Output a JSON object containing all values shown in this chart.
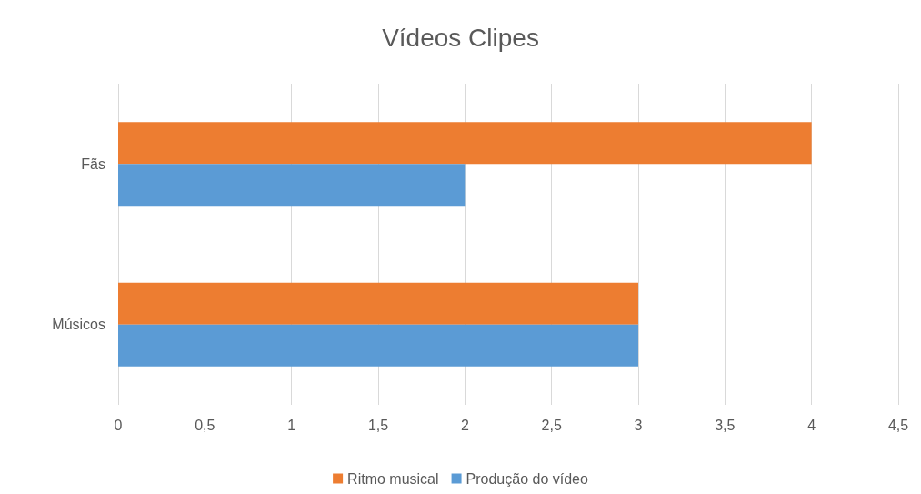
{
  "chart_data": {
    "type": "bar",
    "orientation": "horizontal",
    "title": "Vídeos Clipes",
    "categories": [
      "Fãs",
      "Músicos"
    ],
    "series": [
      {
        "name": "Ritmo musical",
        "color": "#ed7d31",
        "values": [
          4,
          3
        ]
      },
      {
        "name": "Produção do vídeo",
        "color": "#5b9bd5",
        "values": [
          2,
          3
        ]
      }
    ],
    "xlim": [
      0,
      4.5
    ],
    "xticks": [
      0,
      {
        "value": 0.5,
        "label": "0,5"
      },
      1,
      {
        "value": 1.5,
        "label": "1,5"
      },
      2,
      {
        "value": 2.5,
        "label": "2,5"
      },
      3,
      {
        "value": 3.5,
        "label": "3,5"
      },
      4,
      {
        "value": 4.5,
        "label": "4,5"
      }
    ],
    "grid": "x",
    "legend": "bottom"
  }
}
